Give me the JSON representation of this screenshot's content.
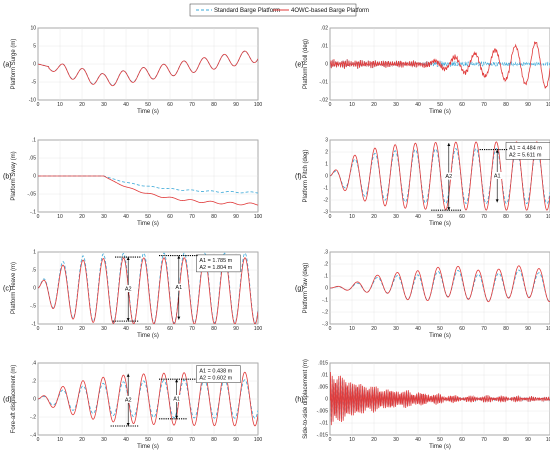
{
  "legend": {
    "items": [
      {
        "label": "Standard Barge Platform",
        "color": "#3aa8d8",
        "dash": true
      },
      {
        "label": "4OWC-based Barge Platform",
        "color": "#e03a3a",
        "dash": false
      }
    ]
  },
  "colors": {
    "standard": "#3aa8d8",
    "owc": "#e03a3a"
  },
  "chart_data": [
    {
      "id": "a",
      "type": "line",
      "panel_label": "(a)",
      "xlabel": "Time (s)",
      "ylabel": "Platform Surge (m)",
      "xlim": [
        0,
        100
      ],
      "ylim": [
        -10,
        10
      ],
      "xticks": [
        0,
        10,
        20,
        30,
        40,
        50,
        60,
        70,
        80,
        90,
        100
      ],
      "yticks": [
        10,
        5,
        0,
        -5,
        -10
      ],
      "grid": true,
      "series": [
        {
          "name": "Standard Barge Platform",
          "model": {
            "kind": "surge",
            "s": 1.0
          }
        },
        {
          "name": "4OWC-based Barge Platform",
          "model": {
            "kind": "surge",
            "s": 1.02
          }
        }
      ],
      "annotations": []
    },
    {
      "id": "b",
      "type": "line",
      "panel_label": "(b)",
      "xlabel": "Time (s)",
      "ylabel": "Platform Sway (m)",
      "xlim": [
        0,
        100
      ],
      "ylim": [
        -0.1,
        0.1
      ],
      "xticks": [
        0,
        10,
        20,
        30,
        40,
        50,
        60,
        70,
        80,
        90,
        100
      ],
      "yticks": [
        0.1,
        0.05,
        0,
        -0.05,
        -0.1
      ],
      "grid": true,
      "series": [
        {
          "name": "Standard Barge Platform",
          "model": {
            "kind": "sway",
            "final": -0.048
          }
        },
        {
          "name": "4OWC-based Barge Platform",
          "model": {
            "kind": "sway",
            "final": -0.082
          }
        }
      ],
      "annotations": []
    },
    {
      "id": "c",
      "type": "line",
      "panel_label": "(c)",
      "xlabel": "Time (s)",
      "ylabel": "Platform Heave (m)",
      "xlim": [
        0,
        100
      ],
      "ylim": [
        -1,
        1
      ],
      "xticks": [
        0,
        10,
        20,
        30,
        40,
        50,
        60,
        70,
        80,
        90,
        100
      ],
      "yticks": [
        1,
        0.5,
        0,
        -0.5,
        -1
      ],
      "grid": true,
      "series": [
        {
          "name": "Standard Barge Platform",
          "model": {
            "kind": "heave",
            "amp": 0.97,
            "tau": 8,
            "dc": 0,
            "phase": 0.15
          }
        },
        {
          "name": "4OWC-based Barge Platform",
          "model": {
            "kind": "heave",
            "amp": 0.92,
            "tau": 8,
            "dc": -0.08,
            "phase": 0.15
          }
        }
      ],
      "annotations": [
        {
          "type": "box",
          "lines": [
            "A1 = 1.785 m",
            "A2 = 1.804 m"
          ],
          "x": 72,
          "y": 0.92
        },
        {
          "type": "hline",
          "x1": 55,
          "x2": 73,
          "y": 0.9
        },
        {
          "type": "hline",
          "x1": 35,
          "x2": 47,
          "y": 0.86
        },
        {
          "type": "hline",
          "x1": 34,
          "x2": 46,
          "y": -0.92
        },
        {
          "type": "vline",
          "x": 64,
          "y1": 0.9,
          "y2": -0.88,
          "label": "A1"
        },
        {
          "type": "vline",
          "x": 41,
          "y1": 0.86,
          "y2": -0.92,
          "label": "A2"
        }
      ]
    },
    {
      "id": "d",
      "type": "line",
      "panel_label": "(d)",
      "xlabel": "Time (s)",
      "ylabel": "Fore-aft displacement (m)",
      "xlim": [
        0,
        100
      ],
      "ylim": [
        -0.4,
        0.4
      ],
      "xticks": [
        0,
        10,
        20,
        30,
        40,
        50,
        60,
        70,
        80,
        90,
        100
      ],
      "yticks": [
        0.4,
        0.2,
        0,
        -0.2,
        -0.4
      ],
      "grid": true,
      "series": [
        {
          "name": "Standard Barge Platform",
          "model": {
            "kind": "heave",
            "amp": 0.215,
            "tau": 18,
            "dc": 0,
            "phase": 0.2
          }
        },
        {
          "name": "4OWC-based Barge Platform",
          "model": {
            "kind": "heave",
            "amp": 0.3,
            "tau": 18,
            "dc": 0,
            "phase": 0.2
          }
        }
      ],
      "annotations": [
        {
          "type": "box",
          "lines": [
            "A1 = 0.438 m",
            "A2 = 0.602 m"
          ],
          "x": 72,
          "y": 0.37
        },
        {
          "type": "hline",
          "x1": 55,
          "x2": 72,
          "y": 0.22
        },
        {
          "type": "hline",
          "x1": 33,
          "x2": 46,
          "y": -0.3
        },
        {
          "type": "hline",
          "x1": 55,
          "x2": 68,
          "y": -0.22
        },
        {
          "type": "vline",
          "x": 63,
          "y1": 0.22,
          "y2": -0.22,
          "label": "A1"
        },
        {
          "type": "vline",
          "x": 41,
          "y1": 0.28,
          "y2": -0.3,
          "label": "A2"
        }
      ]
    },
    {
      "id": "e",
      "type": "line",
      "panel_label": "(e)",
      "xlabel": "Time (s)",
      "ylabel": "Platform Roll (deg)",
      "xlim": [
        0,
        100
      ],
      "ylim": [
        -0.02,
        0.02
      ],
      "xticks": [
        0,
        10,
        20,
        30,
        40,
        50,
        60,
        70,
        80,
        90,
        100
      ],
      "yticks": [
        0.02,
        0.01,
        0,
        -0.01,
        -0.02
      ],
      "grid": true,
      "series": [
        {
          "name": "Standard Barge Platform",
          "model": {
            "kind": "roll",
            "amp": 0.003,
            "grow": 0.0
          }
        },
        {
          "name": "4OWC-based Barge Platform",
          "model": {
            "kind": "roll",
            "amp": 0.003,
            "grow": 0.0135
          }
        }
      ],
      "annotations": []
    },
    {
      "id": "f",
      "type": "line",
      "panel_label": "(f)",
      "xlabel": "Time (s)",
      "ylabel": "Platform Pitch (deg)",
      "xlim": [
        0,
        100
      ],
      "ylim": [
        -3,
        3
      ],
      "xticks": [
        0,
        10,
        20,
        30,
        40,
        50,
        60,
        70,
        80,
        90,
        100
      ],
      "yticks": [
        3,
        2,
        1,
        0,
        -1,
        -2,
        -3
      ],
      "grid": true,
      "series": [
        {
          "name": "Standard Barge Platform",
          "model": {
            "kind": "heave",
            "amp": 2.3,
            "tau": 12,
            "dc": 0,
            "phase": 0.2
          }
        },
        {
          "name": "4OWC-based Barge Platform",
          "model": {
            "kind": "heave",
            "amp": 2.85,
            "tau": 12,
            "dc": 0,
            "phase": 0.2
          }
        }
      ],
      "annotations": [
        {
          "type": "box",
          "lines": [
            "A1 = 4.484 m",
            "A2 = 5.611 m"
          ],
          "x": 80,
          "y": 2.8
        },
        {
          "type": "hline",
          "x1": 68,
          "x2": 81,
          "y": 2.2
        },
        {
          "type": "hline",
          "x1": 46,
          "x2": 60,
          "y": -2.85
        },
        {
          "type": "vline",
          "x": 76,
          "y1": 2.2,
          "y2": -2.2,
          "label": "A1"
        },
        {
          "type": "vline",
          "x": 54,
          "y1": 2.75,
          "y2": -2.85,
          "label": "A2"
        }
      ]
    },
    {
      "id": "g",
      "type": "line",
      "panel_label": "(g)",
      "xlabel": "Time (s)",
      "ylabel": "Platform Yaw (deg)",
      "xlim": [
        0,
        100
      ],
      "ylim": [
        -0.3,
        0.3
      ],
      "xticks": [
        0,
        10,
        20,
        30,
        40,
        50,
        60,
        70,
        80,
        90,
        100
      ],
      "yticks": [
        0.3,
        0.2,
        0.1,
        0,
        -0.1,
        -0.2,
        -0.3
      ],
      "grid": true,
      "series": [
        {
          "name": "Standard Barge Platform",
          "model": {
            "kind": "yaw",
            "amp": 0.11,
            "base": 0.02
          }
        },
        {
          "name": "4OWC-based Barge Platform",
          "model": {
            "kind": "yaw",
            "amp": 0.13,
            "base": 0.035
          }
        }
      ],
      "annotations": []
    },
    {
      "id": "h",
      "type": "line",
      "panel_label": "(h)",
      "xlabel": "Time (s)",
      "ylabel": "Side-to-side displacement (m)",
      "xlim": [
        0,
        100
      ],
      "ylim": [
        -0.015,
        0.015
      ],
      "xticks": [
        0,
        10,
        20,
        30,
        40,
        50,
        60,
        70,
        80,
        90,
        100
      ],
      "yticks": [
        0.015,
        0.01,
        0.005,
        0,
        -0.005,
        -0.01,
        -0.015
      ],
      "grid": true,
      "series": [
        {
          "name": "Standard Barge Platform",
          "model": {
            "kind": "decay",
            "amp": 0.01,
            "decay": 0.045,
            "dc": 0
          }
        },
        {
          "name": "4OWC-based Barge Platform",
          "model": {
            "kind": "decay",
            "amp": 0.011,
            "decay": 0.04,
            "dc": 0
          }
        }
      ],
      "annotations": []
    }
  ]
}
